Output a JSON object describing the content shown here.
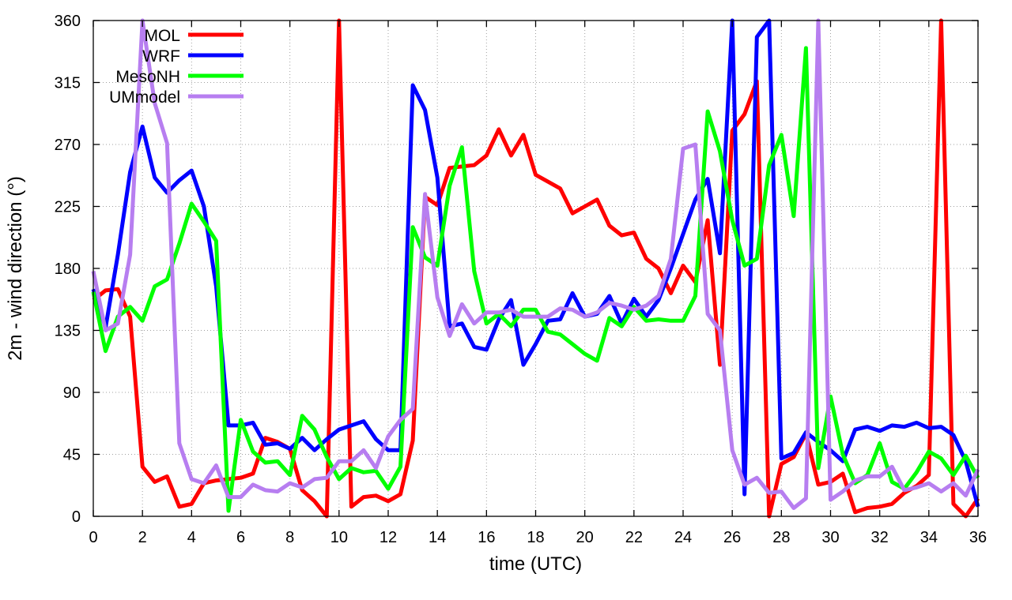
{
  "chart_data": {
    "type": "line",
    "xlabel": "time (UTC)",
    "ylabel": "2m - wind direction (°)",
    "xlim": [
      0,
      36
    ],
    "ylim": [
      0,
      360
    ],
    "xticks": [
      0,
      2,
      4,
      6,
      8,
      10,
      12,
      14,
      16,
      18,
      20,
      22,
      24,
      26,
      28,
      30,
      32,
      34,
      36
    ],
    "yticks": [
      0,
      45,
      90,
      135,
      180,
      225,
      270,
      315,
      360
    ],
    "grid": true,
    "legend_position": "top-left",
    "series": [
      {
        "name": "MOL",
        "color": "#ff0000",
        "points": [
          [
            0,
            157
          ],
          [
            0.5,
            164
          ],
          [
            1,
            165
          ],
          [
            1.5,
            145
          ],
          [
            2,
            36
          ],
          [
            2.5,
            25
          ],
          [
            3,
            29
          ],
          [
            3.5,
            7
          ],
          [
            4,
            9
          ],
          [
            4.5,
            24
          ],
          [
            5,
            26
          ],
          [
            5.5,
            27
          ],
          [
            6,
            28
          ],
          [
            6.5,
            31
          ],
          [
            7,
            57
          ],
          [
            7.5,
            54
          ],
          [
            8,
            49
          ],
          [
            8.5,
            19
          ],
          [
            9,
            11
          ],
          [
            9.5,
            0
          ],
          [
            10,
            360
          ],
          [
            10.5,
            7
          ],
          [
            11,
            14
          ],
          [
            11.5,
            15
          ],
          [
            12,
            11
          ],
          [
            12.5,
            16
          ],
          [
            13,
            55
          ],
          [
            13.5,
            232
          ],
          [
            14,
            226
          ],
          [
            14.5,
            253
          ],
          [
            15,
            254
          ],
          [
            15.5,
            255
          ],
          [
            16,
            262
          ],
          [
            16.5,
            281
          ],
          [
            17,
            262
          ],
          [
            17.5,
            277
          ],
          [
            18,
            248
          ],
          [
            18.5,
            243
          ],
          [
            19,
            238
          ],
          [
            19.5,
            220
          ],
          [
            20,
            225
          ],
          [
            20.5,
            230
          ],
          [
            21,
            211
          ],
          [
            21.5,
            204
          ],
          [
            22,
            206
          ],
          [
            22.5,
            187
          ],
          [
            23,
            180
          ],
          [
            23.5,
            162
          ],
          [
            24,
            182
          ],
          [
            24.5,
            170
          ],
          [
            25,
            215
          ],
          [
            25.5,
            110
          ],
          [
            26,
            280
          ],
          [
            26.5,
            292
          ],
          [
            27,
            316
          ],
          [
            27.5,
            0
          ],
          [
            28,
            38
          ],
          [
            28.5,
            43
          ],
          [
            29,
            60
          ],
          [
            29.5,
            23
          ],
          [
            30,
            25
          ],
          [
            30.5,
            31
          ],
          [
            31,
            3
          ],
          [
            31.5,
            6
          ],
          [
            32,
            7
          ],
          [
            32.5,
            9
          ],
          [
            33,
            17
          ],
          [
            33.5,
            22
          ],
          [
            34,
            30
          ],
          [
            34.5,
            360
          ],
          [
            35,
            9
          ],
          [
            35.5,
            0
          ],
          [
            36,
            13
          ]
        ]
      },
      {
        "name": "WRF",
        "color": "#0000ff",
        "points": [
          [
            0,
            165
          ],
          [
            0.5,
            137
          ],
          [
            1,
            190
          ],
          [
            1.5,
            250
          ],
          [
            2,
            283
          ],
          [
            2.5,
            246
          ],
          [
            3,
            235
          ],
          [
            3.5,
            244
          ],
          [
            4,
            251
          ],
          [
            4.5,
            225
          ],
          [
            5,
            167
          ],
          [
            5.5,
            66
          ],
          [
            6,
            66
          ],
          [
            6.5,
            68
          ],
          [
            7,
            52
          ],
          [
            7.5,
            53
          ],
          [
            8,
            49
          ],
          [
            8.5,
            57
          ],
          [
            9,
            48
          ],
          [
            9.5,
            56
          ],
          [
            10,
            63
          ],
          [
            10.5,
            66
          ],
          [
            11,
            69
          ],
          [
            11.5,
            56
          ],
          [
            12,
            48
          ],
          [
            12.5,
            48
          ],
          [
            13,
            313
          ],
          [
            13.5,
            295
          ],
          [
            14,
            246
          ],
          [
            14.5,
            138
          ],
          [
            15,
            140
          ],
          [
            15.5,
            123
          ],
          [
            16,
            121
          ],
          [
            16.5,
            143
          ],
          [
            17,
            157
          ],
          [
            17.5,
            110
          ],
          [
            18,
            125
          ],
          [
            18.5,
            142
          ],
          [
            19,
            143
          ],
          [
            19.5,
            162
          ],
          [
            20,
            145
          ],
          [
            20.5,
            147
          ],
          [
            21,
            160
          ],
          [
            21.5,
            140
          ],
          [
            22,
            158
          ],
          [
            22.5,
            145
          ],
          [
            23,
            157
          ],
          [
            23.5,
            180
          ],
          [
            24,
            205
          ],
          [
            24.5,
            230
          ],
          [
            25,
            245
          ],
          [
            25.5,
            191
          ],
          [
            26,
            360
          ],
          [
            26.5,
            16
          ],
          [
            27,
            348
          ],
          [
            27.5,
            360
          ],
          [
            28,
            42
          ],
          [
            28.5,
            46
          ],
          [
            29,
            61
          ],
          [
            29.5,
            54
          ],
          [
            30,
            48
          ],
          [
            30.5,
            40
          ],
          [
            31,
            63
          ],
          [
            31.5,
            65
          ],
          [
            32,
            62
          ],
          [
            32.5,
            66
          ],
          [
            33,
            65
          ],
          [
            33.5,
            68
          ],
          [
            34,
            64
          ],
          [
            34.5,
            65
          ],
          [
            35,
            59
          ],
          [
            35.5,
            40
          ],
          [
            36,
            7
          ]
        ]
      },
      {
        "name": "MesoNH",
        "color": "#00ff00",
        "points": [
          [
            0,
            163
          ],
          [
            0.5,
            120
          ],
          [
            1,
            145
          ],
          [
            1.5,
            152
          ],
          [
            2,
            142
          ],
          [
            2.5,
            167
          ],
          [
            3,
            172
          ],
          [
            3.5,
            198
          ],
          [
            4,
            227
          ],
          [
            4.5,
            214
          ],
          [
            5,
            200
          ],
          [
            5.5,
            4
          ],
          [
            6,
            70
          ],
          [
            6.5,
            47
          ],
          [
            7,
            39
          ],
          [
            7.5,
            40
          ],
          [
            8,
            30
          ],
          [
            8.5,
            73
          ],
          [
            9,
            63
          ],
          [
            9.5,
            43
          ],
          [
            10,
            27
          ],
          [
            10.5,
            35
          ],
          [
            11,
            32
          ],
          [
            11.5,
            33
          ],
          [
            12,
            20
          ],
          [
            12.5,
            36
          ],
          [
            13,
            210
          ],
          [
            13.5,
            188
          ],
          [
            14,
            182
          ],
          [
            14.5,
            240
          ],
          [
            15,
            268
          ],
          [
            15.5,
            178
          ],
          [
            16,
            140
          ],
          [
            16.5,
            147
          ],
          [
            17,
            138
          ],
          [
            17.5,
            150
          ],
          [
            18,
            150
          ],
          [
            18.5,
            134
          ],
          [
            19,
            132
          ],
          [
            19.5,
            125
          ],
          [
            20,
            118
          ],
          [
            20.5,
            113
          ],
          [
            21,
            144
          ],
          [
            21.5,
            138
          ],
          [
            22,
            152
          ],
          [
            22.5,
            142
          ],
          [
            23,
            143
          ],
          [
            23.5,
            142
          ],
          [
            24,
            142
          ],
          [
            24.5,
            160
          ],
          [
            25,
            294
          ],
          [
            25.5,
            265
          ],
          [
            26,
            215
          ],
          [
            26.5,
            182
          ],
          [
            27,
            187
          ],
          [
            27.5,
            255
          ],
          [
            28,
            277
          ],
          [
            28.5,
            218
          ],
          [
            29,
            340
          ],
          [
            29.5,
            35
          ],
          [
            30,
            87
          ],
          [
            30.5,
            45
          ],
          [
            31,
            24
          ],
          [
            31.5,
            30
          ],
          [
            32,
            53
          ],
          [
            32.5,
            25
          ],
          [
            33,
            20
          ],
          [
            33.5,
            32
          ],
          [
            34,
            47
          ],
          [
            34.5,
            42
          ],
          [
            35,
            30
          ],
          [
            35.5,
            44
          ],
          [
            36,
            28
          ]
        ]
      },
      {
        "name": "UMmodel",
        "color": "#b77ef0",
        "points": [
          [
            0,
            178
          ],
          [
            0.5,
            135
          ],
          [
            1,
            140
          ],
          [
            1.5,
            190
          ],
          [
            2,
            360
          ],
          [
            2.5,
            300
          ],
          [
            3,
            271
          ],
          [
            3.5,
            53
          ],
          [
            4,
            27
          ],
          [
            4.5,
            24
          ],
          [
            5,
            37
          ],
          [
            5.5,
            14
          ],
          [
            6,
            14
          ],
          [
            6.5,
            23
          ],
          [
            7,
            19
          ],
          [
            7.5,
            18
          ],
          [
            8,
            24
          ],
          [
            8.5,
            21
          ],
          [
            9,
            27
          ],
          [
            9.5,
            28
          ],
          [
            10,
            40
          ],
          [
            10.5,
            40
          ],
          [
            11,
            48
          ],
          [
            11.5,
            35
          ],
          [
            12,
            58
          ],
          [
            12.5,
            70
          ],
          [
            13,
            78
          ],
          [
            13.5,
            234
          ],
          [
            14,
            159
          ],
          [
            14.5,
            131
          ],
          [
            15,
            154
          ],
          [
            15.5,
            140
          ],
          [
            16,
            148
          ],
          [
            16.5,
            148
          ],
          [
            17,
            150
          ],
          [
            17.5,
            145
          ],
          [
            18,
            145
          ],
          [
            18.5,
            145
          ],
          [
            19,
            151
          ],
          [
            19.5,
            150
          ],
          [
            20,
            145
          ],
          [
            20.5,
            148
          ],
          [
            21,
            155
          ],
          [
            21.5,
            153
          ],
          [
            22,
            150
          ],
          [
            22.5,
            153
          ],
          [
            23,
            160
          ],
          [
            23.5,
            187
          ],
          [
            24,
            267
          ],
          [
            24.5,
            270
          ],
          [
            25,
            147
          ],
          [
            25.5,
            135
          ],
          [
            26,
            48
          ],
          [
            26.5,
            23
          ],
          [
            27,
            28
          ],
          [
            27.5,
            17
          ],
          [
            28,
            18
          ],
          [
            28.5,
            6
          ],
          [
            29,
            13
          ],
          [
            29.5,
            360
          ],
          [
            30,
            12
          ],
          [
            30.5,
            18
          ],
          [
            31,
            26
          ],
          [
            31.5,
            29
          ],
          [
            32,
            29
          ],
          [
            32.5,
            36
          ],
          [
            33,
            19
          ],
          [
            33.5,
            21
          ],
          [
            34,
            24
          ],
          [
            34.5,
            18
          ],
          [
            35,
            24
          ],
          [
            35.5,
            15
          ],
          [
            36,
            34
          ]
        ]
      }
    ]
  }
}
